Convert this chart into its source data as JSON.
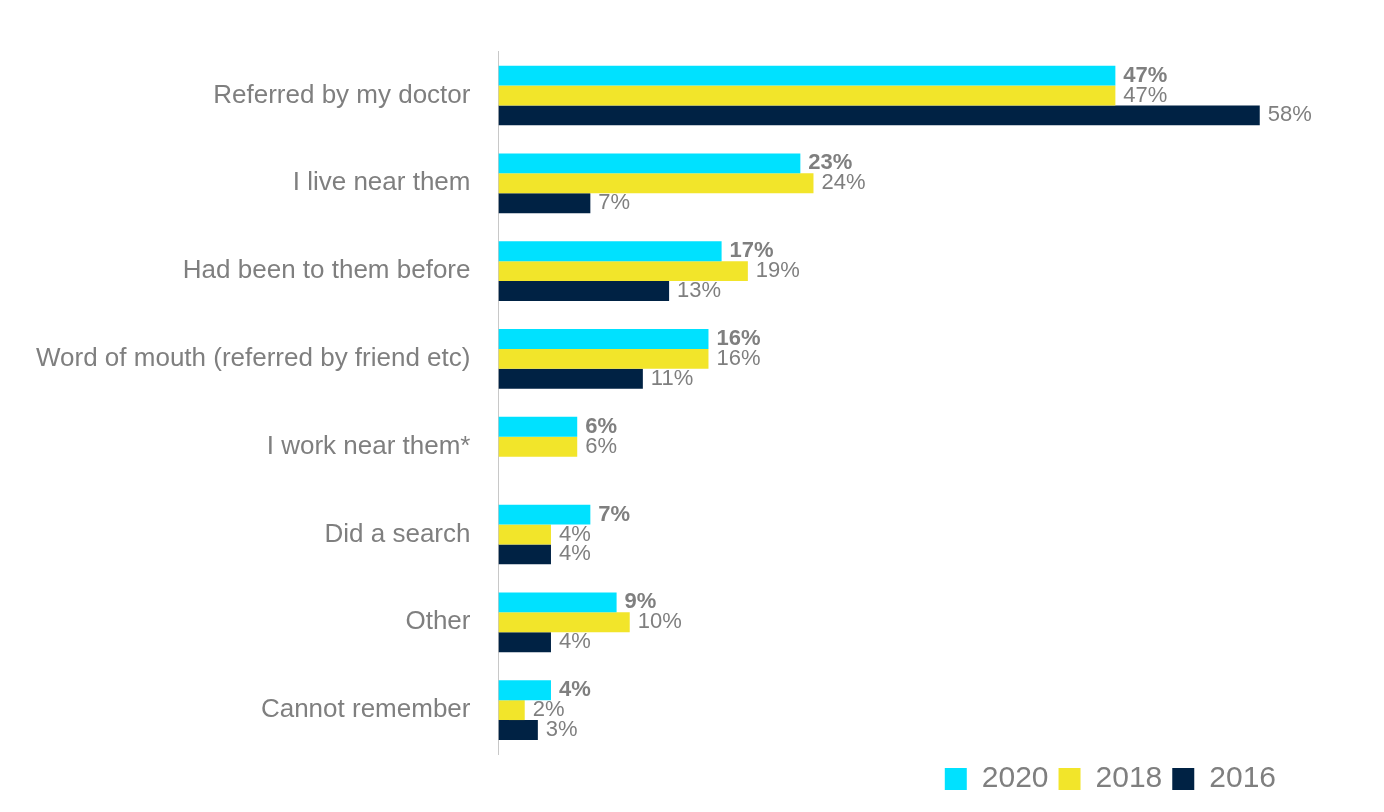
{
  "chart_data": {
    "type": "bar",
    "orientation": "horizontal",
    "categories": [
      "Referred by my doctor",
      "I live near them",
      "Had been to them before",
      "Word of mouth (referred by friend etc)",
      "I work near them*",
      "Did a search",
      "Other",
      "Cannot remember"
    ],
    "series": [
      {
        "name": "2020",
        "color": "#00e1ff",
        "values": [
          47,
          23,
          17,
          16,
          6,
          7,
          9,
          4
        ],
        "value_labels": [
          "47%",
          "23%",
          "17%",
          "16%",
          "6%",
          "7%",
          "9%",
          "4%"
        ]
      },
      {
        "name": "2018",
        "color": "#f2e52a",
        "values": [
          47,
          24,
          19,
          16,
          6,
          4,
          10,
          2
        ],
        "value_labels": [
          "47%",
          "24%",
          "19%",
          "16%",
          "6%",
          "4%",
          "10%",
          "2%"
        ]
      },
      {
        "name": "2016",
        "color": "#002244",
        "values": [
          58,
          7,
          13,
          11,
          null,
          4,
          4,
          3
        ],
        "value_labels": [
          "58%",
          "7%",
          "13%",
          "11%",
          null,
          "4%",
          "4%",
          "3%"
        ]
      }
    ],
    "grid": false,
    "legend": "bottom right"
  }
}
